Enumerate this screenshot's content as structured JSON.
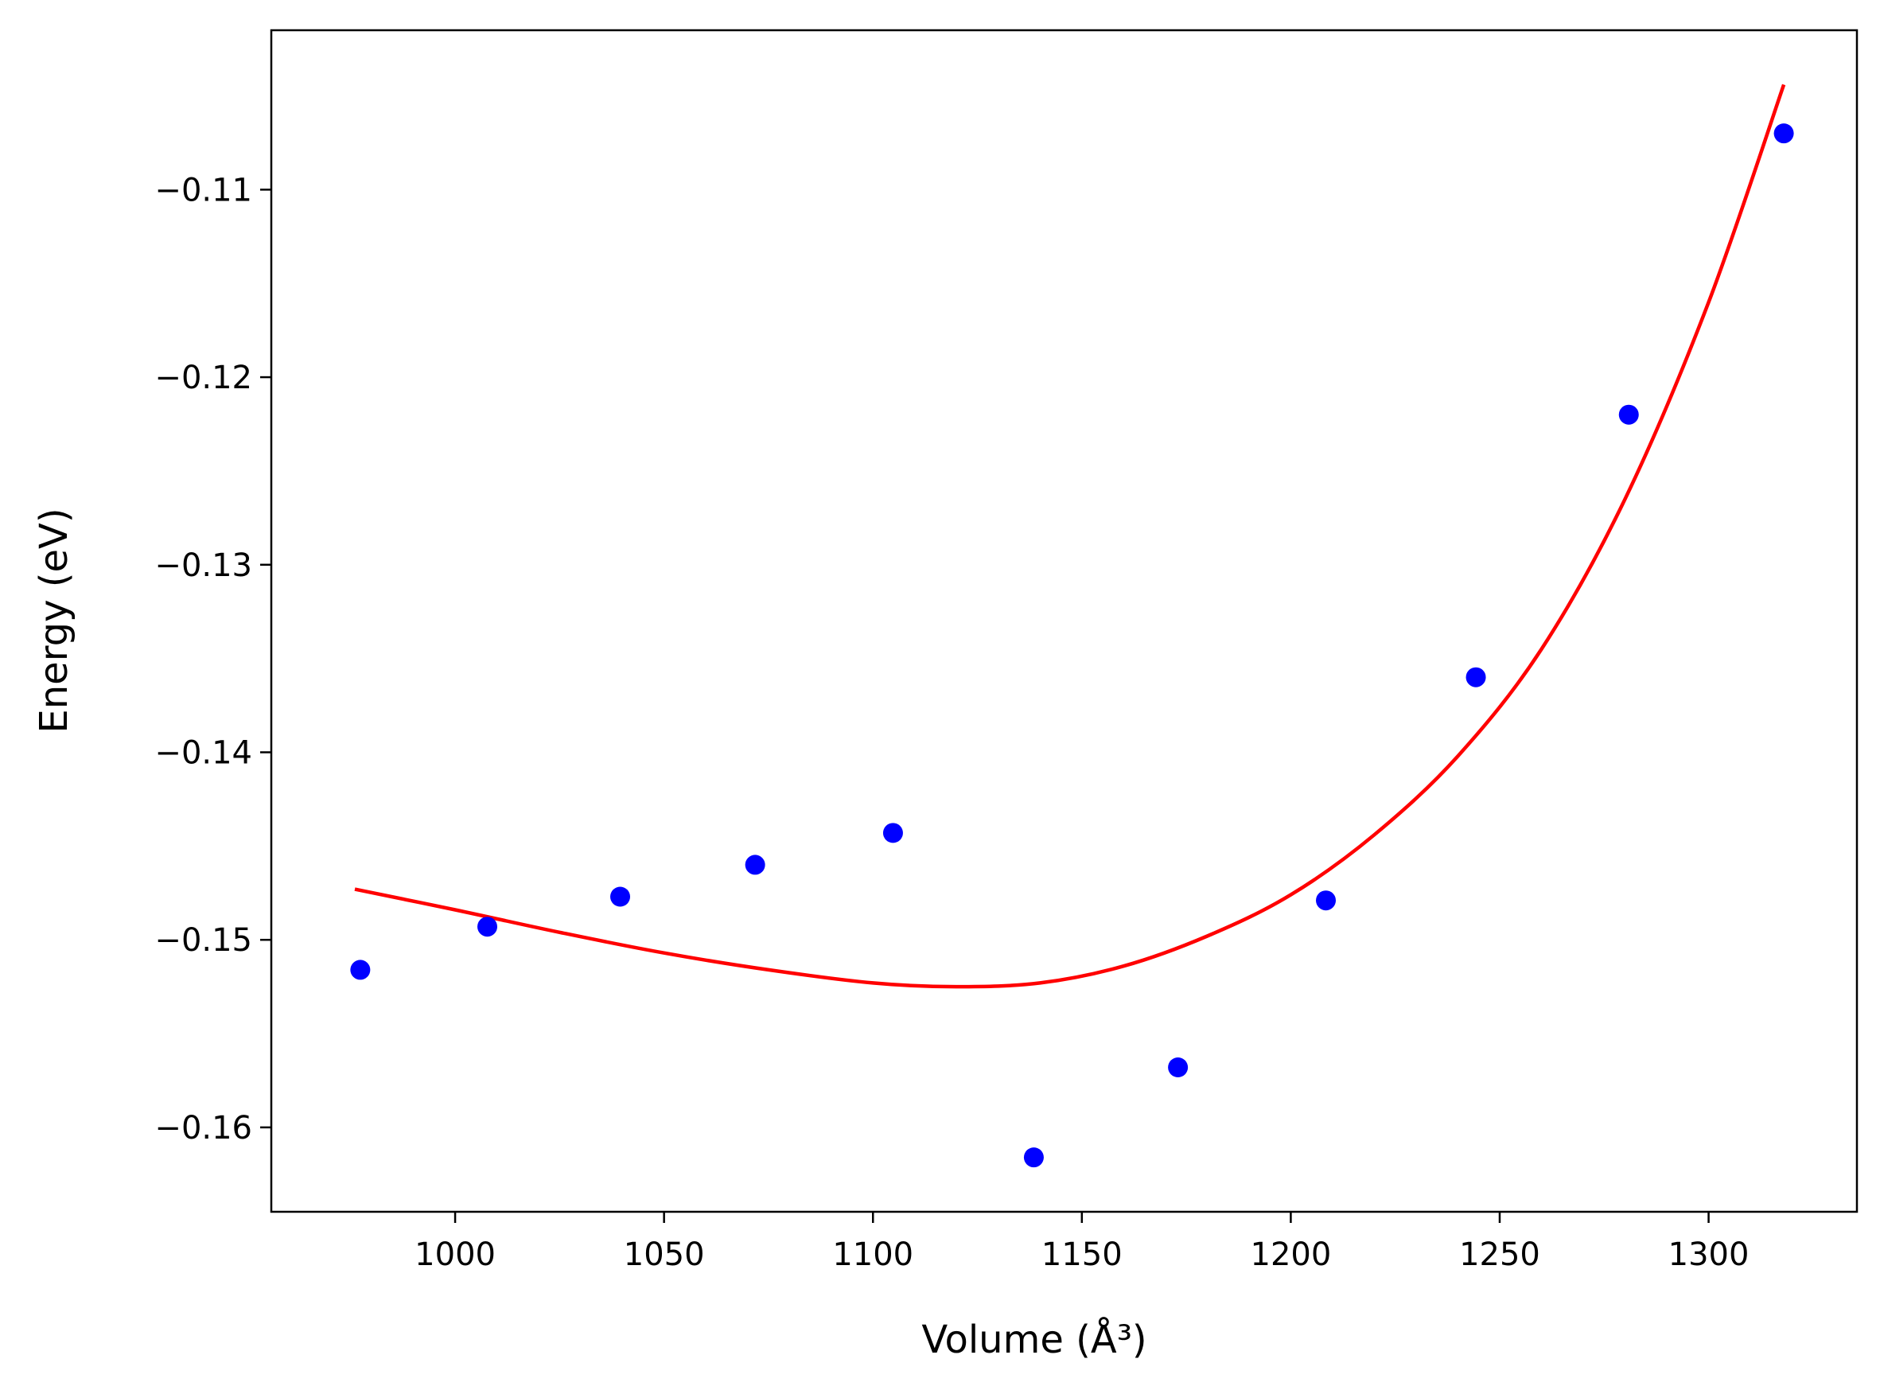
{
  "chart_data": {
    "type": "scatter",
    "title": "",
    "xlabel": "Volume (Å³)",
    "ylabel": "Energy (eV)",
    "xlim": [
      956.0,
      1335.5
    ],
    "ylim": [
      -0.1645,
      -0.1015
    ],
    "x_ticks": [
      {
        "value": 1000,
        "label": "1000"
      },
      {
        "value": 1050,
        "label": "1050"
      },
      {
        "value": 1100,
        "label": "1100"
      },
      {
        "value": 1150,
        "label": "1150"
      },
      {
        "value": 1200,
        "label": "1200"
      },
      {
        "value": 1250,
        "label": "1250"
      },
      {
        "value": 1300,
        "label": "1300"
      }
    ],
    "y_ticks": [
      {
        "value": -0.16,
        "label": "−0.16"
      },
      {
        "value": -0.15,
        "label": "−0.15"
      },
      {
        "value": -0.14,
        "label": "−0.14"
      },
      {
        "value": -0.13,
        "label": "−0.13"
      },
      {
        "value": -0.12,
        "label": "−0.12"
      },
      {
        "value": -0.11,
        "label": "−0.11"
      }
    ],
    "grid": false,
    "series": [
      {
        "kind": "scatter",
        "color": "#0000ff",
        "points": [
          {
            "x": 977.3,
            "y": -0.1516
          },
          {
            "x": 1007.7,
            "y": -0.1493
          },
          {
            "x": 1039.5,
            "y": -0.1477
          },
          {
            "x": 1071.8,
            "y": -0.146
          },
          {
            "x": 1104.8,
            "y": -0.1443
          },
          {
            "x": 1138.5,
            "y": -0.1616
          },
          {
            "x": 1173.0,
            "y": -0.1568
          },
          {
            "x": 1208.4,
            "y": -0.1479
          },
          {
            "x": 1244.3,
            "y": -0.136
          },
          {
            "x": 1280.9,
            "y": -0.122
          },
          {
            "x": 1318.0,
            "y": -0.107
          }
        ]
      },
      {
        "kind": "line",
        "color": "#ff0000",
        "points": [
          {
            "x": 976.0,
            "y": -0.1473
          },
          {
            "x": 1000.0,
            "y": -0.1484
          },
          {
            "x": 1025.0,
            "y": -0.1496
          },
          {
            "x": 1050.0,
            "y": -0.1507
          },
          {
            "x": 1075.0,
            "y": -0.1516
          },
          {
            "x": 1100.0,
            "y": -0.1523
          },
          {
            "x": 1120.0,
            "y": -0.1525
          },
          {
            "x": 1140.0,
            "y": -0.1523
          },
          {
            "x": 1160.0,
            "y": -0.1514
          },
          {
            "x": 1180.0,
            "y": -0.1498
          },
          {
            "x": 1200.0,
            "y": -0.1476
          },
          {
            "x": 1220.0,
            "y": -0.1444
          },
          {
            "x": 1240.0,
            "y": -0.1402
          },
          {
            "x": 1260.0,
            "y": -0.1345
          },
          {
            "x": 1280.0,
            "y": -0.1265
          },
          {
            "x": 1300.0,
            "y": -0.116
          },
          {
            "x": 1318.0,
            "y": -0.1044
          }
        ]
      }
    ]
  }
}
